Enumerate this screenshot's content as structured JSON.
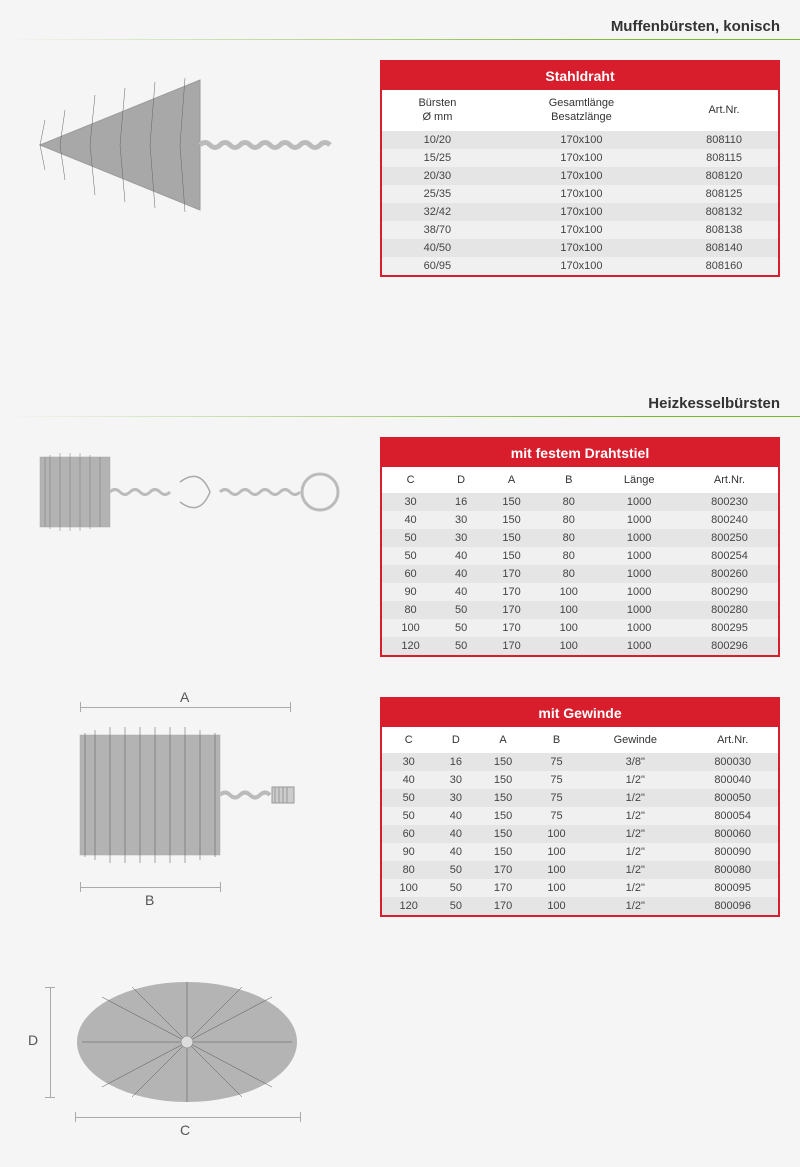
{
  "section1": {
    "title": "Muffenbürsten, konisch",
    "table1": {
      "title": "Stahldraht",
      "titleColor": "#d81e2c",
      "titleTextColor": "#ffffff",
      "headers": [
        "Bürsten\nØ mm",
        "Gesamtlänge\nBesatzlänge",
        "Art.Nr."
      ],
      "rows": [
        [
          "10/20",
          "170x100",
          "808110"
        ],
        [
          "15/25",
          "170x100",
          "808115"
        ],
        [
          "20/30",
          "170x100",
          "808120"
        ],
        [
          "25/35",
          "170x100",
          "808125"
        ],
        [
          "32/42",
          "170x100",
          "808132"
        ],
        [
          "38/70",
          "170x100",
          "808138"
        ],
        [
          "40/50",
          "170x100",
          "808140"
        ],
        [
          "60/95",
          "170x100",
          "808160"
        ]
      ]
    }
  },
  "section2": {
    "title": "Heizkesselbürsten",
    "table2": {
      "title": "mit festem Drahtstiel",
      "headers": [
        "C",
        "D",
        "A",
        "B",
        "Länge",
        "Art.Nr."
      ],
      "rows": [
        [
          "30",
          "16",
          "150",
          "80",
          "1000",
          "800230"
        ],
        [
          "40",
          "30",
          "150",
          "80",
          "1000",
          "800240"
        ],
        [
          "50",
          "30",
          "150",
          "80",
          "1000",
          "800250"
        ],
        [
          "50",
          "40",
          "150",
          "80",
          "1000",
          "800254"
        ],
        [
          "60",
          "40",
          "170",
          "80",
          "1000",
          "800260"
        ],
        [
          "90",
          "40",
          "170",
          "100",
          "1000",
          "800290"
        ],
        [
          "80",
          "50",
          "170",
          "100",
          "1000",
          "800280"
        ],
        [
          "100",
          "50",
          "170",
          "100",
          "1000",
          "800295"
        ],
        [
          "120",
          "50",
          "170",
          "100",
          "1000",
          "800296"
        ]
      ]
    },
    "table3": {
      "title": "mit Gewinde",
      "headers": [
        "C",
        "D",
        "A",
        "B",
        "Gewinde",
        "Art.Nr."
      ],
      "rows": [
        [
          "30",
          "16",
          "150",
          "75",
          "3/8\"",
          "800030"
        ],
        [
          "40",
          "30",
          "150",
          "75",
          "1/2\"",
          "800040"
        ],
        [
          "50",
          "30",
          "150",
          "75",
          "1/2\"",
          "800050"
        ],
        [
          "50",
          "40",
          "150",
          "75",
          "1/2\"",
          "800054"
        ],
        [
          "60",
          "40",
          "150",
          "100",
          "1/2\"",
          "800060"
        ],
        [
          "90",
          "40",
          "150",
          "100",
          "1/2\"",
          "800090"
        ],
        [
          "80",
          "50",
          "170",
          "100",
          "1/2\"",
          "800080"
        ],
        [
          "100",
          "50",
          "170",
          "100",
          "1/2\"",
          "800095"
        ],
        [
          "120",
          "50",
          "170",
          "100",
          "1/2\"",
          "800096"
        ]
      ]
    }
  },
  "dims": {
    "A": "A",
    "B": "B",
    "C": "C",
    "D": "D"
  },
  "colors": {
    "accent": "#d81e2c",
    "green": "#7ab82c",
    "rowAlt": "#e5e5e5",
    "rowNorm": "#f0f0f0",
    "background": "#f5f5f5",
    "text": "#333333",
    "brushGrey": "#777777"
  },
  "typography": {
    "titleFontSize": 15,
    "tableTitleFontSize": 14,
    "tableFontSize": 11,
    "dimLabelFontSize": 14
  }
}
